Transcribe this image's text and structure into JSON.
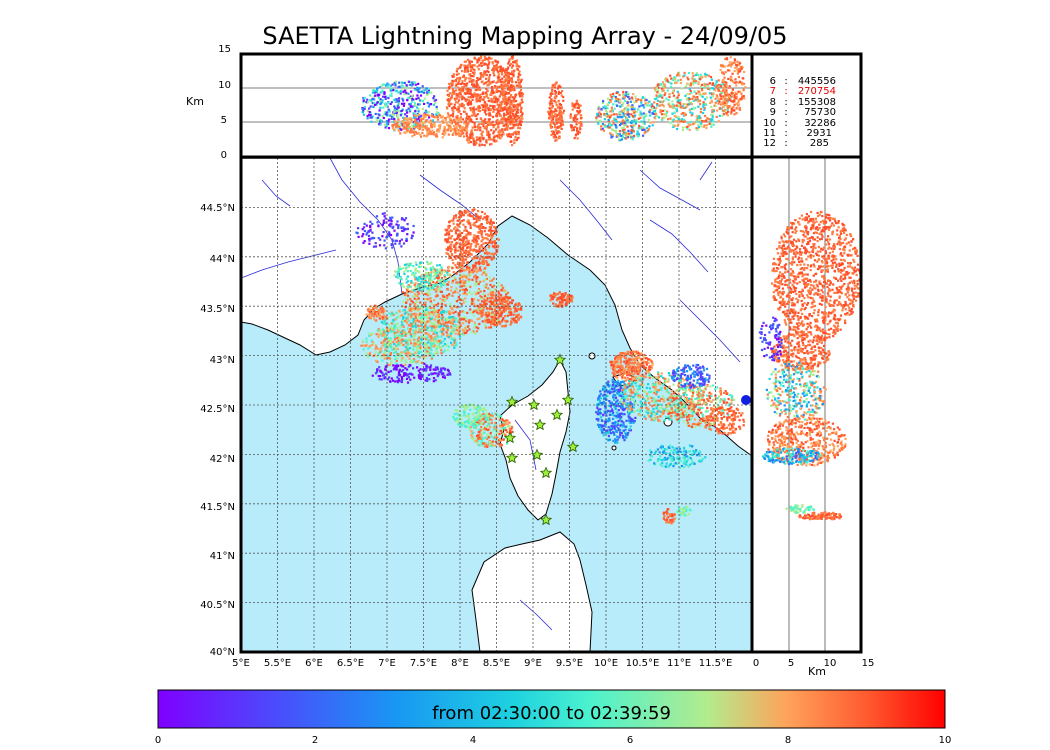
{
  "title": "SAETTA Lightning Mapping Array - 24/09/05",
  "map": {
    "lon_ticks": [
      "5°E",
      "5.5°E",
      "6°E",
      "6.5°E",
      "7°E",
      "7.5°E",
      "8°E",
      "8.5°E",
      "9°E",
      "9.5°E",
      "10°E",
      "10.5°E",
      "11°E",
      "11.5°E"
    ],
    "lat_ticks": [
      "40°N",
      "40.5°N",
      "41°N",
      "41.5°N",
      "42°N",
      "42.5°N",
      "43°N",
      "43.5°N",
      "44°N",
      "44.5°N"
    ],
    "lon_range": [
      5,
      12
    ],
    "lat_range": [
      40,
      45
    ],
    "colors": {
      "sea": "#b8ecfb",
      "land": "#ffffff",
      "coast": "#000000",
      "rivers": "#2b2bd8",
      "grid": "#555555",
      "station_fill": "#9cf03a",
      "station_stroke": "#2a5a00"
    }
  },
  "height_panel": {
    "axis_label": "Km",
    "ticks": [
      "0",
      "5",
      "10",
      "15"
    ],
    "range": [
      0,
      15
    ]
  },
  "alt_panel": {
    "axis_label": "Km",
    "ticks": [
      "0",
      "5",
      "10",
      "15"
    ]
  },
  "stats": [
    {
      "label": "6",
      "sep": ":",
      "value": "445556",
      "highlight": false
    },
    {
      "label": "7",
      "sep": ":",
      "value": "270754",
      "highlight": true
    },
    {
      "label": "8",
      "sep": ":",
      "value": "155308",
      "highlight": false
    },
    {
      "label": "9",
      "sep": ":",
      "value": "75730",
      "highlight": false
    },
    {
      "label": "10",
      "sep": ":",
      "value": "32286",
      "highlight": false
    },
    {
      "label": "11",
      "sep": ":",
      "value": "2931",
      "highlight": false
    },
    {
      "label": "12",
      "sep": ":",
      "value": "285",
      "highlight": false
    }
  ],
  "colorbar": {
    "caption": "from 02:30:00 to 02:39:59",
    "ticks": [
      "0",
      "2",
      "4",
      "6",
      "8",
      "10"
    ],
    "range": [
      0,
      10
    ]
  }
}
